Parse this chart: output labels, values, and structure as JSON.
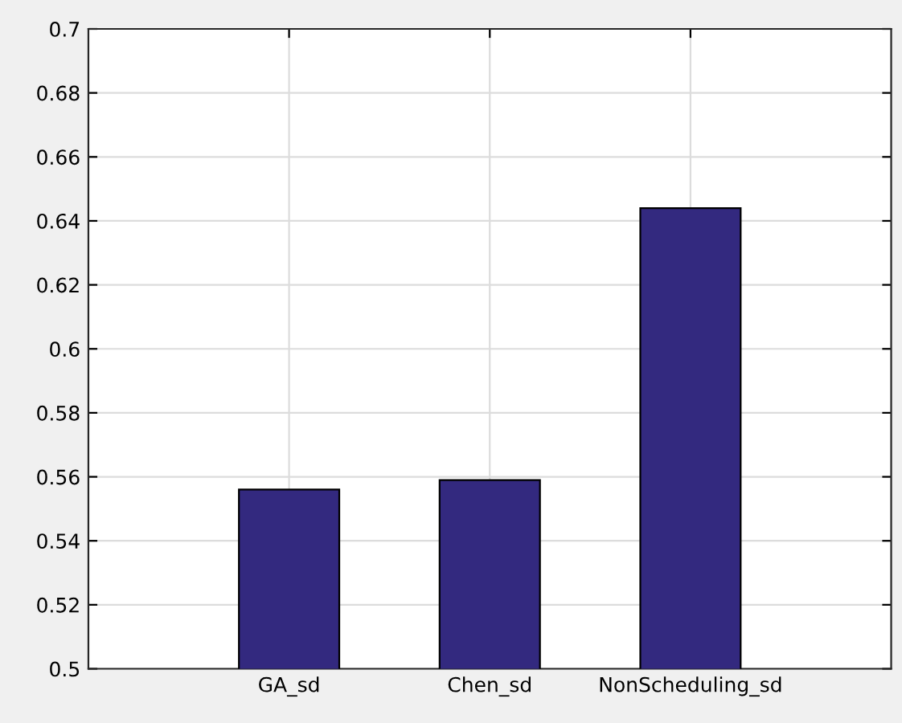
{
  "chart_data": {
    "type": "bar",
    "categories": [
      "GA_sd",
      "Chen_sd",
      "NonScheduling_sd"
    ],
    "values": [
      0.556,
      0.559,
      0.644
    ],
    "color": "#33297f",
    "ylim": [
      0.5,
      0.7
    ],
    "yticks": [
      0.5,
      0.52,
      0.54,
      0.56,
      0.58,
      0.6,
      0.62,
      0.64,
      0.66,
      0.68,
      0.7
    ],
    "grid": true
  }
}
